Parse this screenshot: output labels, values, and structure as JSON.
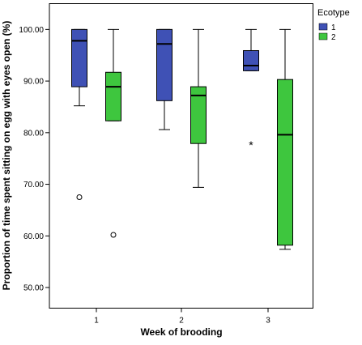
{
  "chart_data": {
    "type": "boxplot",
    "xlabel": "Week of brooding",
    "ylabel": "Proportion of time spent sitting on egg with eyes open (%)",
    "categories": [
      "1",
      "2",
      "3"
    ],
    "ylim": [
      46,
      105
    ],
    "yticks": [
      "50.00",
      "60.00",
      "70.00",
      "80.00",
      "90.00",
      "100.00"
    ],
    "grid": false,
    "legend": {
      "title": "Ecotype",
      "position": "right",
      "entries": [
        "1",
        "2"
      ]
    },
    "series": [
      {
        "name": "1",
        "color": "#3f51b5",
        "boxes": [
          {
            "category": "1",
            "min": 85.2,
            "q1": 88.9,
            "median": 97.8,
            "q3": 100,
            "max": 100,
            "outliers": [
              67.5
            ],
            "extremes": []
          },
          {
            "category": "2",
            "min": 80.6,
            "q1": 86.2,
            "median": 97.2,
            "q3": 100,
            "max": 100,
            "outliers": [],
            "extremes": []
          },
          {
            "category": "3",
            "min": 92.0,
            "q1": 92.0,
            "median": 93.0,
            "q3": 95.9,
            "max": 100,
            "outliers": [],
            "extremes": [
              77.8
            ]
          }
        ]
      },
      {
        "name": "2",
        "color": "#3ec63e",
        "boxes": [
          {
            "category": "1",
            "min": 82.3,
            "q1": 82.3,
            "median": 88.9,
            "q3": 91.7,
            "max": 100,
            "outliers": [
              60.2
            ],
            "extremes": []
          },
          {
            "category": "2",
            "min": 69.4,
            "q1": 77.9,
            "median": 87.2,
            "q3": 88.9,
            "max": 100,
            "outliers": [],
            "extremes": []
          },
          {
            "category": "3",
            "min": 57.4,
            "q1": 58.2,
            "median": 79.6,
            "q3": 90.3,
            "max": 100,
            "outliers": [],
            "extremes": []
          }
        ]
      }
    ]
  }
}
